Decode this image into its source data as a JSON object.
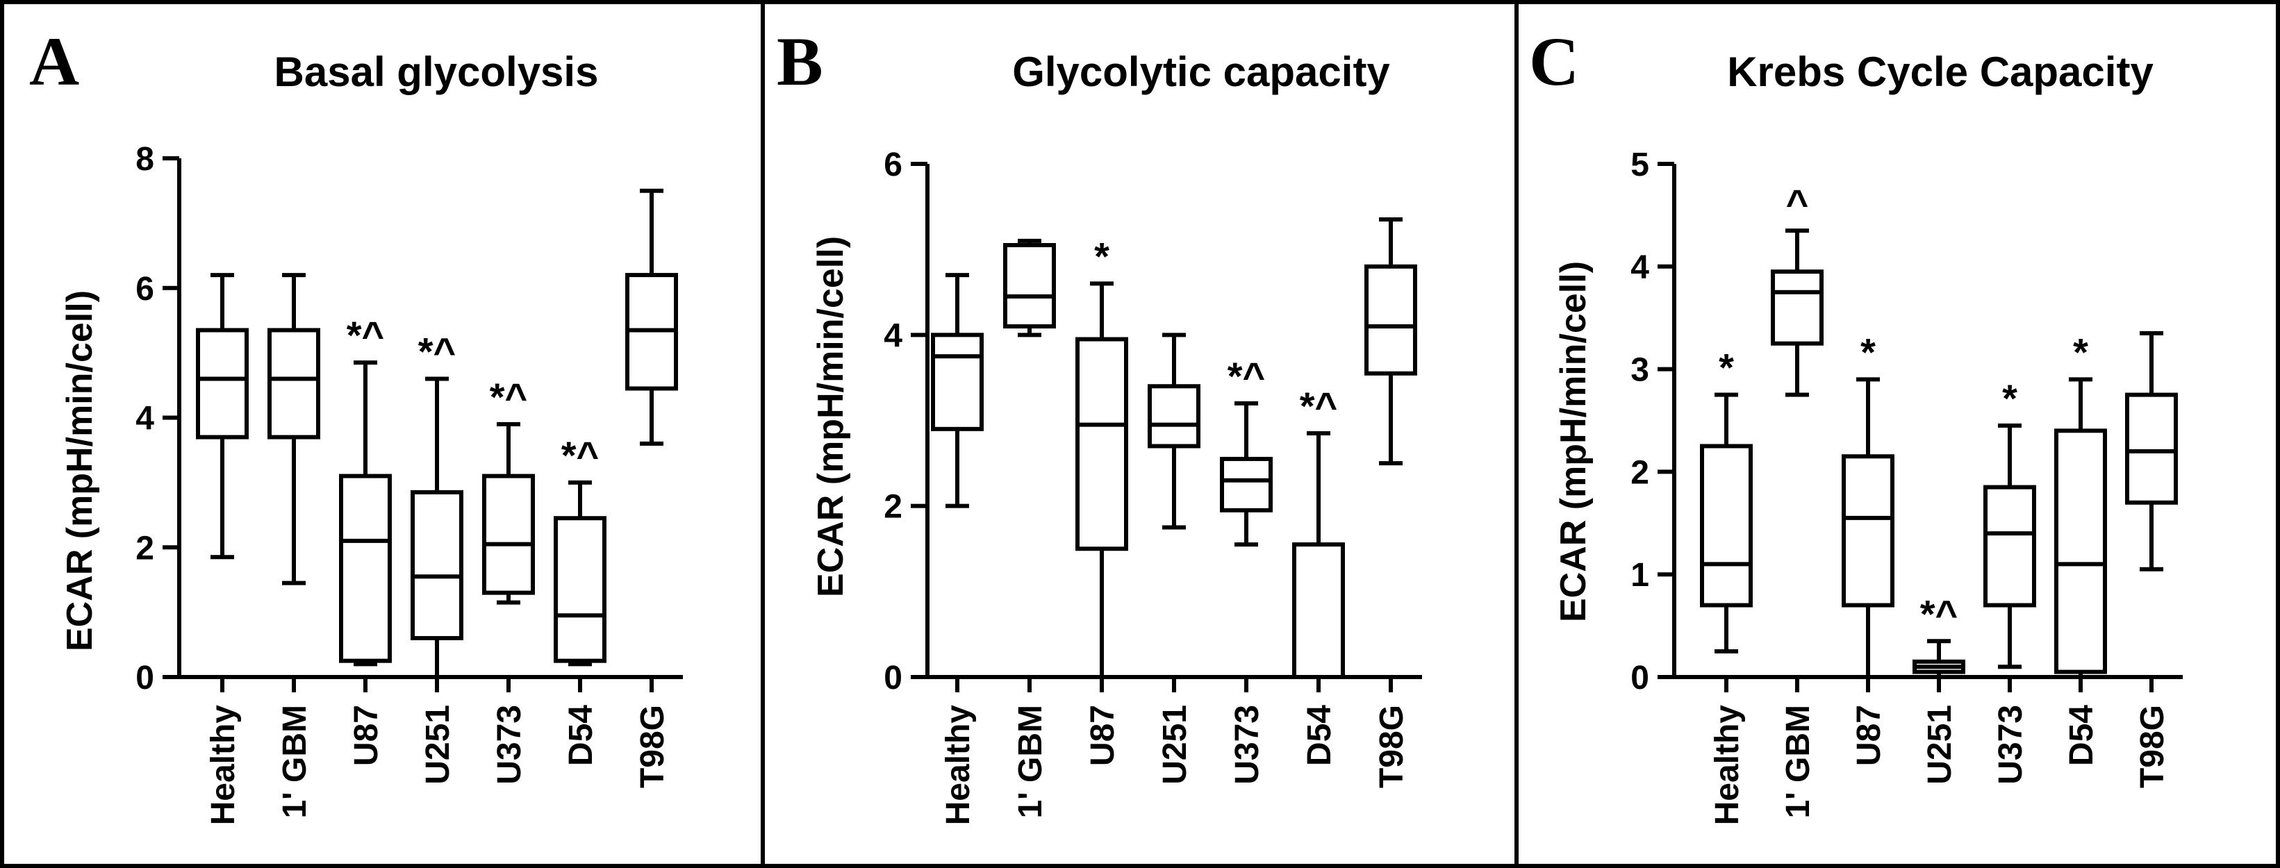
{
  "chart_data": [
    {
      "type": "box",
      "panel": "A",
      "title": "Basal glycolysis",
      "ylabel": "ECAR (mpH/min/cell)",
      "ylim": [
        0,
        8
      ],
      "yticks": [
        "0",
        "2",
        "4",
        "6",
        "8"
      ],
      "categories": [
        "Healthy",
        "1' GBM",
        "U87",
        "U251",
        "U373",
        "D54",
        "T98G"
      ],
      "boxes": [
        {
          "min": 1.85,
          "q1": 3.7,
          "median": 4.6,
          "q3": 5.35,
          "max": 6.2,
          "annotation": ""
        },
        {
          "min": 1.45,
          "q1": 3.7,
          "median": 4.6,
          "q3": 5.35,
          "max": 6.2,
          "annotation": ""
        },
        {
          "min": 0.2,
          "q1": 0.25,
          "median": 2.1,
          "q3": 3.1,
          "max": 4.85,
          "annotation": "*^"
        },
        {
          "min": 0.0,
          "q1": 0.6,
          "median": 1.55,
          "q3": 2.85,
          "max": 4.6,
          "annotation": "*^"
        },
        {
          "min": 1.15,
          "q1": 1.3,
          "median": 2.05,
          "q3": 3.1,
          "max": 3.9,
          "annotation": "*^"
        },
        {
          "min": 0.2,
          "q1": 0.25,
          "median": 0.95,
          "q3": 2.45,
          "max": 3.0,
          "annotation": "*^"
        },
        {
          "min": 3.6,
          "q1": 4.45,
          "median": 5.35,
          "q3": 6.2,
          "max": 7.5,
          "annotation": ""
        }
      ]
    },
    {
      "type": "box",
      "panel": "B",
      "title": "Glycolytic capacity",
      "ylabel": "ECAR (mpH/min/cell)",
      "ylim": [
        0,
        6
      ],
      "yticks": [
        "0",
        "2",
        "4",
        "6"
      ],
      "categories": [
        "Healthy",
        "1' GBM",
        "U87",
        "U251",
        "U373",
        "D54",
        "T98G"
      ],
      "boxes": [
        {
          "min": 2.0,
          "q1": 2.9,
          "median": 3.75,
          "q3": 4.0,
          "max": 4.7,
          "annotation": ""
        },
        {
          "min": 4.0,
          "q1": 4.1,
          "median": 4.45,
          "q3": 5.05,
          "max": 5.1,
          "annotation": ""
        },
        {
          "min": 0.0,
          "q1": 1.5,
          "median": 2.95,
          "q3": 3.95,
          "max": 4.6,
          "annotation": "*"
        },
        {
          "min": 1.75,
          "q1": 2.7,
          "median": 2.95,
          "q3": 3.4,
          "max": 4.0,
          "annotation": ""
        },
        {
          "min": 1.55,
          "q1": 1.95,
          "median": 2.3,
          "q3": 2.55,
          "max": 3.2,
          "annotation": "*^"
        },
        {
          "min": 0.0,
          "q1": 0.0,
          "median": 0.0,
          "q3": 1.55,
          "max": 2.85,
          "annotation": "*^"
        },
        {
          "min": 2.5,
          "q1": 3.55,
          "median": 4.1,
          "q3": 4.8,
          "max": 5.35,
          "annotation": ""
        }
      ]
    },
    {
      "type": "box",
      "panel": "C",
      "title": "Krebs Cycle Capacity",
      "ylabel": "ECAR (mpH/min/cell)",
      "ylim": [
        0,
        5
      ],
      "yticks": [
        "0",
        "1",
        "2",
        "3",
        "4",
        "5"
      ],
      "categories": [
        "Healthy",
        "1' GBM",
        "U87",
        "U251",
        "U373",
        "D54",
        "T98G"
      ],
      "boxes": [
        {
          "min": 0.25,
          "q1": 0.7,
          "median": 1.1,
          "q3": 2.25,
          "max": 2.75,
          "annotation": "*"
        },
        {
          "min": 2.75,
          "q1": 3.25,
          "median": 3.75,
          "q3": 3.95,
          "max": 4.35,
          "annotation": "^"
        },
        {
          "min": 0.0,
          "q1": 0.7,
          "median": 1.55,
          "q3": 2.15,
          "max": 2.9,
          "annotation": "*"
        },
        {
          "min": 0.0,
          "q1": 0.05,
          "median": 0.1,
          "q3": 0.15,
          "max": 0.35,
          "annotation": "*^"
        },
        {
          "min": 0.1,
          "q1": 0.7,
          "median": 1.4,
          "q3": 1.85,
          "max": 2.45,
          "annotation": "*"
        },
        {
          "min": 0.0,
          "q1": 0.05,
          "median": 1.1,
          "q3": 2.4,
          "max": 2.9,
          "annotation": "*"
        },
        {
          "min": 1.05,
          "q1": 1.7,
          "median": 2.2,
          "q3": 2.75,
          "max": 3.35,
          "annotation": ""
        }
      ]
    }
  ]
}
